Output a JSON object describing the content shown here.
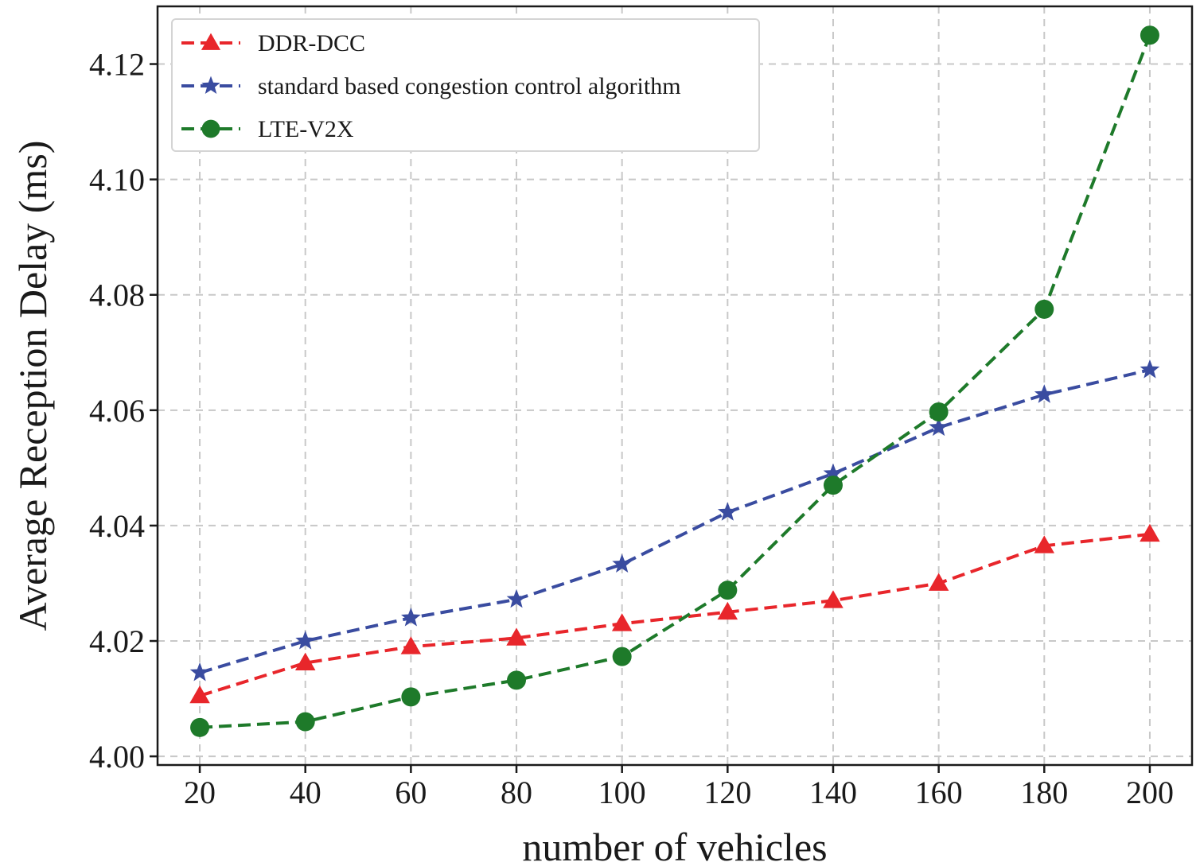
{
  "chart_data": {
    "type": "line",
    "xlabel": "number of vehicles",
    "ylabel": "Average Reception Delay (ms)",
    "x": [
      20,
      40,
      60,
      80,
      100,
      120,
      140,
      160,
      180,
      200
    ],
    "x_ticks": [
      "20",
      "40",
      "60",
      "80",
      "100",
      "120",
      "140",
      "160",
      "180",
      "200"
    ],
    "y_ticks": [
      "4.00",
      "4.02",
      "4.04",
      "4.06",
      "4.08",
      "4.10",
      "4.12"
    ],
    "y_tick_values": [
      4.0,
      4.02,
      4.04,
      4.06,
      4.08,
      4.1,
      4.12
    ],
    "xlim": [
      12,
      208
    ],
    "ylim": [
      3.9985,
      4.13
    ],
    "grid": true,
    "legend_position": "top-left",
    "series": [
      {
        "name": "DDR-DCC",
        "color": "#e8262b",
        "marker": "triangle",
        "values": [
          4.0105,
          4.0162,
          4.019,
          4.0205,
          4.023,
          4.025,
          4.027,
          4.03,
          4.0365,
          4.0385
        ]
      },
      {
        "name": "standard based congestion control algorithm",
        "color": "#3a4ca0",
        "marker": "star",
        "values": [
          4.0145,
          4.02,
          4.024,
          4.0272,
          4.0333,
          4.0423,
          4.049,
          4.057,
          4.0627,
          4.067
        ]
      },
      {
        "name": "LTE-V2X",
        "color": "#1e7a2a",
        "marker": "circle",
        "values": [
          4.005,
          4.006,
          4.0103,
          4.0132,
          4.0173,
          4.0288,
          4.047,
          4.0597,
          4.0775,
          4.125
        ]
      }
    ]
  }
}
